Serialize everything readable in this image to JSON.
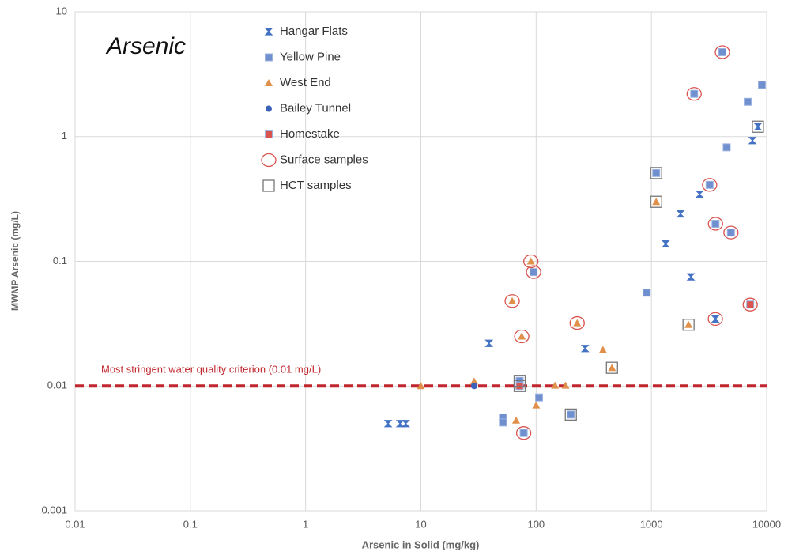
{
  "chart_data": {
    "type": "scatter",
    "title": "Arsenic",
    "x_label": "Arsenic in Solid (mg/kg)",
    "y_label": "MWMP Arsenic (mg/L)",
    "xscale": "log",
    "yscale": "log",
    "grid": true,
    "xlim": [
      0.01,
      10000
    ],
    "xticks": [
      0.01,
      0.1,
      1,
      10,
      100,
      1000,
      10000
    ],
    "ylim": [
      0.001,
      10
    ],
    "yticks": [
      0.001,
      0.01,
      0.1,
      1,
      10
    ],
    "hline": {
      "value": 0.01,
      "label": "Most stringent water quality criterion (0.01 mg/L)",
      "color": "#c0262d"
    },
    "series": [
      {
        "name": "Hangar Flats",
        "color": "#4472c4",
        "marker": "bowtie",
        "x": [
          5.2,
          6.6,
          7.4,
          39,
          266,
          2200,
          1330,
          1790,
          2620,
          3590,
          7530,
          8400
        ],
        "y": [
          0.005,
          0.005,
          0.005,
          0.022,
          0.02,
          0.075,
          0.138,
          0.24,
          0.345,
          0.0345,
          0.93,
          1.2
        ]
      },
      {
        "name": "Yellow Pine",
        "color": "#6f8fcf",
        "marker": "square",
        "x": [
          51.5,
          51.5,
          106,
          78,
          200,
          95,
          910,
          1100,
          3200,
          3600,
          4900,
          2350,
          4130,
          4500,
          6850,
          9100,
          72
        ],
        "y": [
          0.0056,
          0.0051,
          0.0081,
          0.0042,
          0.0059,
          0.082,
          0.056,
          0.51,
          0.41,
          0.2,
          0.17,
          2.2,
          4.75,
          0.82,
          1.9,
          2.6,
          0.011
        ]
      },
      {
        "name": "West End",
        "color": "#e0904a",
        "marker": "triangle",
        "x": [
          10,
          29,
          67,
          70,
          100,
          146,
          180,
          380,
          455,
          1100,
          2100,
          62,
          75,
          90,
          227
        ],
        "y": [
          0.01,
          0.0109,
          0.0053,
          0.0101,
          0.007,
          0.0101,
          0.0101,
          0.0195,
          0.014,
          0.3,
          0.031,
          0.048,
          0.025,
          0.1,
          0.032
        ]
      },
      {
        "name": "Bailey Tunnel",
        "color": "#3a62b8",
        "marker": "circle",
        "x": [
          29
        ],
        "y": [
          0.01
        ]
      },
      {
        "name": "Homestake",
        "color": "#d9534f",
        "marker": "square",
        "x": [
          7200,
          72
        ],
        "y": [
          0.045,
          0.01
        ]
      },
      {
        "name": "Surface samples",
        "color": "#d9534f",
        "marker": "open-circle",
        "x": [
          4130,
          2350,
          3200,
          3600,
          4900,
          3590,
          7200,
          90,
          95,
          62,
          75,
          227,
          78
        ],
        "y": [
          4.75,
          2.2,
          0.41,
          0.2,
          0.17,
          0.0345,
          0.045,
          0.1,
          0.082,
          0.048,
          0.025,
          0.032,
          0.0042
        ]
      },
      {
        "name": "HCT samples",
        "color": "#777777",
        "marker": "open-square",
        "x": [
          1100,
          1100,
          8400,
          2100,
          455,
          200,
          72,
          72
        ],
        "y": [
          0.51,
          0.3,
          1.2,
          0.031,
          0.014,
          0.0059,
          0.011,
          0.01
        ]
      }
    ]
  }
}
